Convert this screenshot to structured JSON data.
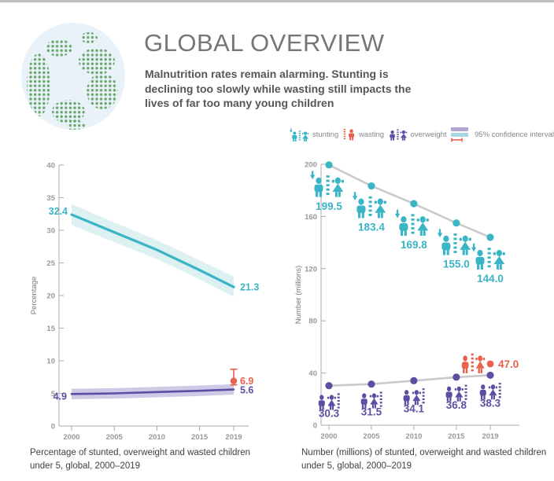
{
  "header": {
    "title": "GLOBAL OVERVIEW",
    "subtitle": "Malnutrition rates remain alarming. Stunting is declining too slowly while wasting still impacts the lives of far too many young children"
  },
  "legend": {
    "items": [
      {
        "key": "stunting",
        "label": "stunting",
        "color": "#3ab5c5"
      },
      {
        "key": "wasting",
        "label": "wasting",
        "color": "#e9604e"
      },
      {
        "key": "overweight",
        "label": "overweight",
        "color": "#5a4fa2"
      }
    ],
    "ci_label": "95% confidence interval",
    "ci_swatch": {
      "overweight_band": "#b2a7d4",
      "stunting_band": "#a5d8e2",
      "error_bar": "#e9604e"
    }
  },
  "colors": {
    "stunting": "#3ab5c5",
    "wasting": "#e9604e",
    "overweight": "#5a4fa2",
    "stunting_band": "#ddf0f2",
    "overweight_band": "#cfc9e6",
    "connector_line": "#c9cacc",
    "axis": "#a8abad",
    "tick_text": "#97999c",
    "globe_green": "#69a66b",
    "globe_blue": "#e9f2f8",
    "top_bar": "#bdbfc1"
  },
  "captions": {
    "left": "Percentage of stunted, overweight and wasted children under 5, global, 2000–2019",
    "right": "Number (millions) of stunted, overweight and wasted children under 5, global, 2000–2019"
  },
  "chart_data": [
    {
      "id": "prevalence",
      "type": "line",
      "title": "Percentage of stunted, overweight and wasted children under 5, global, 2000–2019",
      "xlabel": "",
      "ylabel": "Percentage",
      "x": [
        2000,
        2005,
        2010,
        2015,
        2019
      ],
      "xticks": [
        2000,
        2005,
        2010,
        2015,
        2019
      ],
      "ylim": [
        0,
        40
      ],
      "yticks": [
        0,
        5,
        10,
        15,
        20,
        25,
        30,
        35,
        40
      ],
      "grid": false,
      "series": [
        {
          "name": "stunting",
          "color": "#3ab5c5",
          "band_color": "#ddf0f2",
          "stroke_width": 3.2,
          "values": [
            32.4,
            29.7,
            27.0,
            23.9,
            21.3
          ],
          "ci_low": [
            30.8,
            28.2,
            25.6,
            22.5,
            19.8
          ],
          "ci_high": [
            34.0,
            31.2,
            28.5,
            25.4,
            22.9
          ],
          "first_label": "32.4",
          "last_label": "21.3"
        },
        {
          "name": "overweight",
          "color": "#5a4fa2",
          "band_color": "#cfc9e6",
          "stroke_width": 2.6,
          "values": [
            4.9,
            5.0,
            5.2,
            5.4,
            5.6
          ],
          "ci_low": [
            4.1,
            4.2,
            4.4,
            4.6,
            4.8
          ],
          "ci_high": [
            5.7,
            5.8,
            6.0,
            6.2,
            6.4
          ],
          "first_label": "4.9",
          "last_label": "5.6"
        }
      ],
      "point_series": [
        {
          "name": "wasting",
          "color": "#e9604e",
          "x": 2019,
          "value": 6.9,
          "ci": [
            6.3,
            8.7
          ],
          "label": "6.9"
        }
      ]
    },
    {
      "id": "numbers",
      "type": "line",
      "title": "Number (millions) of stunted, overweight and wasted children under 5, global, 2000–2019",
      "xlabel": "",
      "ylabel": "Number (millions)",
      "x": [
        2000,
        2005,
        2010,
        2015,
        2019
      ],
      "xticks": [
        2000,
        2005,
        2010,
        2015,
        2019
      ],
      "ylim": [
        0,
        200
      ],
      "yticks": [
        0,
        40,
        80,
        120,
        160,
        200
      ],
      "grid": false,
      "series": [
        {
          "name": "stunting",
          "color": "#3ab5c5",
          "icon": "pair-arrow",
          "values": [
            199.5,
            183.4,
            169.8,
            155.0,
            144.0
          ],
          "labels": [
            "199.5",
            "183.4",
            "169.8",
            "155.0",
            "144.0"
          ]
        },
        {
          "name": "overweight",
          "color": "#5a4fa2",
          "icon": "pair",
          "values": [
            30.3,
            31.5,
            34.1,
            36.8,
            38.3
          ],
          "labels": [
            "30.3",
            "31.5",
            "34.1",
            "36.8",
            "38.3"
          ]
        }
      ],
      "point_series": [
        {
          "name": "wasting",
          "color": "#e9604e",
          "x": 2019,
          "value": 47.0,
          "label": "47.0",
          "icon": "pair"
        }
      ]
    }
  ]
}
